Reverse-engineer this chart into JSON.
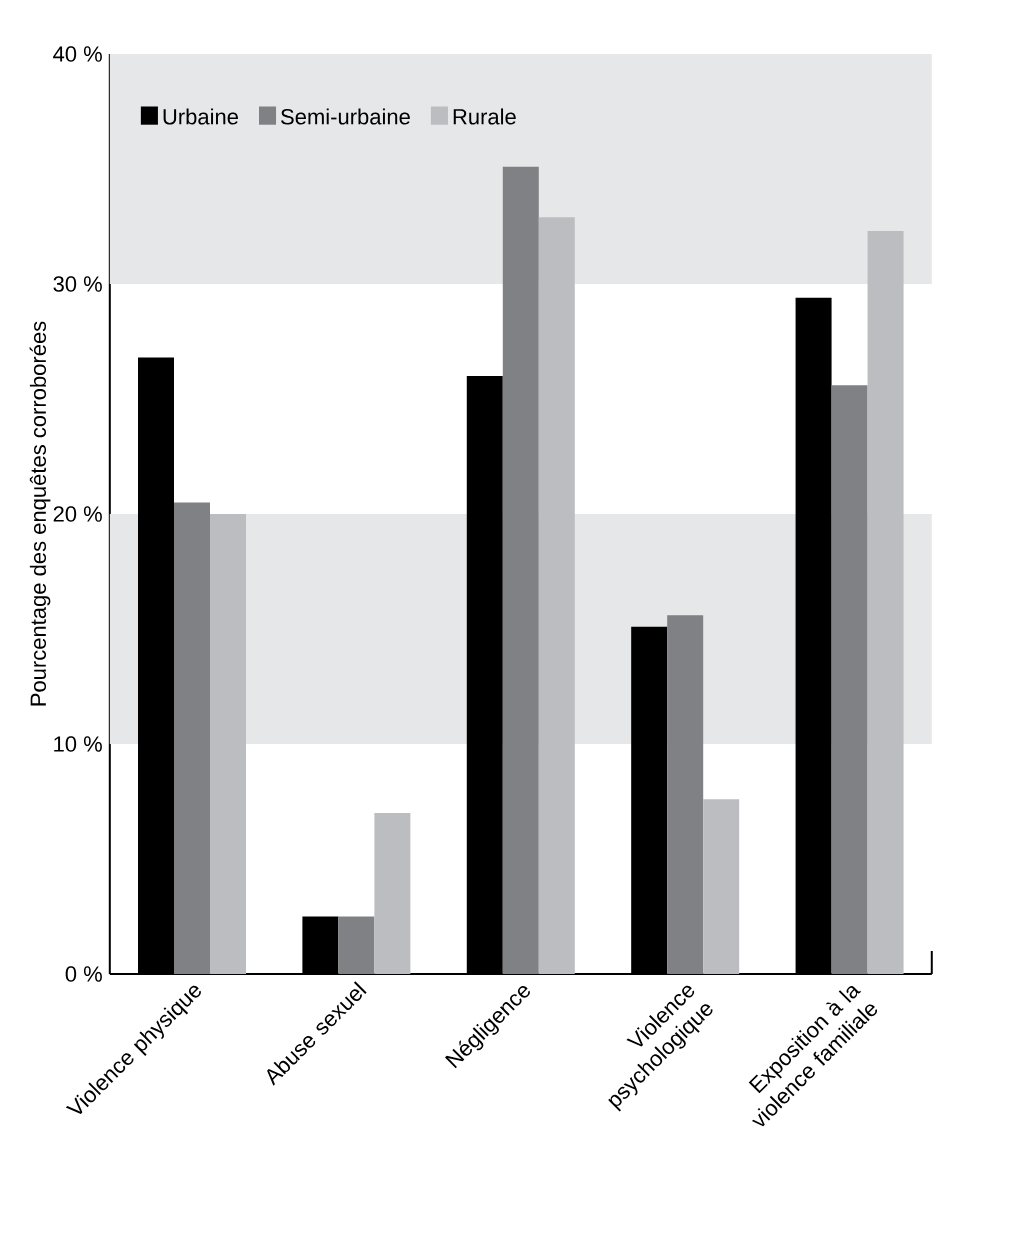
{
  "chart_data": {
    "type": "bar",
    "ylabel": "Pourcentage des enquêtes corroborées",
    "categories": [
      "Violence physique",
      "Abuse sexuel",
      "Négligence",
      "Violence psychologique",
      "Exposition à la violence familiale"
    ],
    "series": [
      {
        "name": "Urbaine",
        "color": "#000000",
        "values": [
          26.8,
          2.5,
          26.0,
          15.1,
          29.4
        ]
      },
      {
        "name": "Semi-urbaine",
        "color": "#808184",
        "values": [
          20.5,
          2.5,
          35.1,
          15.6,
          25.6
        ]
      },
      {
        "name": "Rurale",
        "color": "#bcbdc0",
        "values": [
          20.0,
          7.0,
          32.9,
          7.6,
          32.3
        ]
      }
    ],
    "ylim": [
      0,
      40
    ],
    "yticks": [
      {
        "value": 0,
        "label": "0 %"
      },
      {
        "value": 10,
        "label": "10 %"
      },
      {
        "value": 20,
        "label": "20 %"
      },
      {
        "value": 30,
        "label": "30 %"
      },
      {
        "value": 40,
        "label": "40 %"
      }
    ],
    "bands": [
      {
        "axis": "y",
        "from": 10,
        "to": 20,
        "color": "#e6e7e8"
      },
      {
        "axis": "y",
        "from": 30,
        "to": 40,
        "color": "#e6e7e8"
      }
    ],
    "grid": false,
    "legend": "top left"
  }
}
